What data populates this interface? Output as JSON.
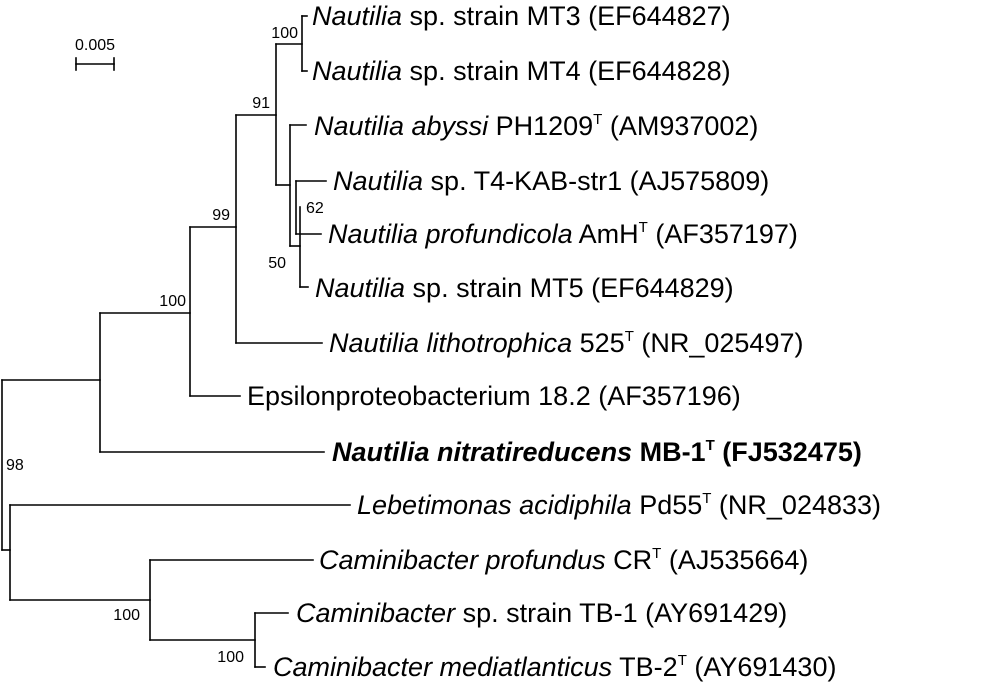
{
  "scale_bar": {
    "label": "0.005"
  },
  "bootstrap": {
    "mt3_mt4": "100",
    "nautilia_core": "91",
    "t4_profundicola": "62",
    "inner_group": "50",
    "nautilia_epsilon": "99",
    "with_nitratireducens": "100",
    "root": "98",
    "caminibacter_group": "100",
    "caminibacter_pair": "100"
  },
  "taxa": [
    {
      "genus": "Nautilia",
      "species": "",
      "rest": " sp. strain MT3 (EF644827)",
      "type_strain": false,
      "acc": ""
    },
    {
      "genus": "Nautilia",
      "species": "",
      "rest": " sp. strain MT4 (EF644828)",
      "type_strain": false,
      "acc": ""
    },
    {
      "genus": "Nautilia abyssi",
      "species": "",
      "rest": " PH1209",
      "type_strain": true,
      "acc": " (AM937002)"
    },
    {
      "genus": "Nautilia",
      "species": "",
      "rest": " sp. T4-KAB-str1 (AJ575809)",
      "type_strain": false,
      "acc": ""
    },
    {
      "genus": "Nautilia profundicola",
      "species": "",
      "rest": " AmH",
      "type_strain": true,
      "acc": " (AF357197)"
    },
    {
      "genus": "Nautilia",
      "species": "",
      "rest": " sp. strain MT5 (EF644829)",
      "type_strain": false,
      "acc": ""
    },
    {
      "genus": "Nautilia lithotrophica",
      "species": "",
      "rest": " 525",
      "type_strain": true,
      "acc": " (NR_025497)"
    },
    {
      "genus": "",
      "species": "",
      "rest": "Epsilonproteobacterium 18.2 (AF357196)",
      "type_strain": false,
      "acc": ""
    },
    {
      "genus": "Nautilia nitratireducens",
      "species": "",
      "rest": " MB-1",
      "type_strain": true,
      "acc": " (FJ532475)",
      "bold": true
    },
    {
      "genus": "Lebetimonas acidiphila",
      "species": "",
      "rest": " Pd55",
      "type_strain": true,
      "acc": " (NR_024833)"
    },
    {
      "genus": "Caminibacter profundus",
      "species": "",
      "rest": " CR",
      "type_strain": true,
      "acc": " (AJ535664)"
    },
    {
      "genus": "Caminibacter",
      "species": "",
      "rest": " sp. strain TB-1 (AY691429)",
      "type_strain": false,
      "acc": ""
    },
    {
      "genus": "Caminibacter mediatlanticus",
      "species": "",
      "rest": " TB-2",
      "type_strain": true,
      "acc": " (AY691430)"
    }
  ],
  "type_superscript": "T"
}
